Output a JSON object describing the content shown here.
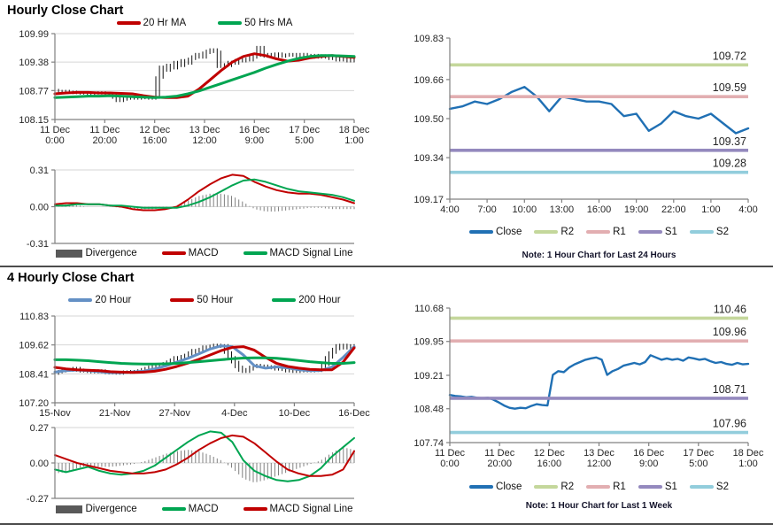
{
  "colors": {
    "dark_red": "#C00000",
    "green": "#00A551",
    "steel_blue": "#6490C5",
    "close_blue": "#2070B4",
    "light_green": "#C4D79B",
    "light_pink": "#E2AEB1",
    "light_purple": "#9489BE",
    "light_cyan": "#92CDDC",
    "candle": "#141414",
    "div_gray": "#808080",
    "div_legend_gray": "#595959",
    "axis": "#808080",
    "grid": "#D6D6D6",
    "tick_text": "#262626"
  },
  "chart_data": [
    {
      "id": "hourly_price",
      "type": "line",
      "title": "Hourly Close Chart",
      "ylim": [
        108.15,
        109.99
      ],
      "y_ticks": [
        "109.99",
        "109.38",
        "108.77",
        "108.15"
      ],
      "x_ticks": [
        [
          "11 Dec",
          "0:00"
        ],
        [
          "11 Dec",
          "20:00"
        ],
        [
          "12 Dec",
          "16:00"
        ],
        [
          "13 Dec",
          "12:00"
        ],
        [
          "16 Dec",
          "9:00"
        ],
        [
          "17 Dec",
          "5:00"
        ],
        [
          "18 Dec",
          "1:00"
        ]
      ],
      "gridlines": true,
      "series": [
        {
          "name": "Close",
          "kind": "candles",
          "color": "candle",
          "legend": false,
          "values": [
            108.78,
            108.75,
            108.74,
            108.76,
            108.73,
            108.74,
            108.72,
            108.73,
            108.71,
            108.72,
            108.7,
            108.72,
            108.71,
            108.73,
            108.72,
            108.7,
            108.71,
            108.62,
            108.55,
            108.58,
            108.6,
            108.61,
            108.62,
            108.6,
            108.61,
            108.62,
            108.61,
            108.6,
            108.62,
            109.05,
            109.28,
            109.2,
            109.32,
            109.25,
            109.38,
            109.3,
            109.42,
            109.35,
            109.45,
            109.5,
            109.55,
            109.48,
            109.58,
            109.62,
            109.65,
            109.6,
            109.28,
            109.33,
            109.3,
            109.38,
            109.35,
            109.42,
            109.4,
            109.45,
            109.42,
            109.48,
            109.52,
            109.7,
            109.55,
            109.5,
            109.55,
            109.52,
            109.56,
            109.5,
            109.54,
            109.52,
            109.55,
            109.53,
            109.5,
            109.55,
            109.52,
            109.5,
            109.53,
            109.48,
            109.5,
            109.52,
            109.48,
            109.45,
            109.5,
            109.42,
            109.46,
            109.44,
            109.4,
            109.45
          ]
        },
        {
          "name": "20 Hr MA",
          "kind": "line",
          "color": "dark_red",
          "width": 3,
          "values": [
            108.7,
            108.72,
            108.73,
            108.73,
            108.72,
            108.72,
            108.71,
            108.7,
            108.66,
            108.63,
            108.62,
            108.62,
            108.65,
            108.8,
            109.0,
            109.2,
            109.38,
            109.5,
            109.56,
            109.52,
            109.45,
            109.4,
            109.42,
            109.47,
            109.5,
            109.52,
            109.5,
            109.48
          ]
        },
        {
          "name": "50 Hrs MA",
          "kind": "line",
          "color": "green",
          "width": 3,
          "values": [
            108.62,
            108.63,
            108.64,
            108.65,
            108.65,
            108.66,
            108.65,
            108.64,
            108.63,
            108.62,
            108.63,
            108.65,
            108.7,
            108.76,
            108.84,
            108.92,
            109.0,
            109.08,
            109.16,
            109.25,
            109.33,
            109.4,
            109.46,
            109.5,
            109.52,
            109.52,
            109.51,
            109.5
          ]
        }
      ]
    },
    {
      "id": "hourly_macd",
      "type": "line",
      "ylim": [
        -0.31,
        0.31
      ],
      "y_ticks": [
        "0.31",
        "0.00",
        "-0.31"
      ],
      "x_ticks": [],
      "gridlines": true,
      "series": [
        {
          "name": "Divergence",
          "kind": "bars",
          "color": "div_gray",
          "values": [
            0.01,
            0.02,
            0.01,
            0.0,
            0.0,
            0.0,
            -0.01,
            -0.02,
            -0.02,
            -0.02,
            -0.01,
            0.01,
            0.05,
            0.09,
            0.11,
            0.11,
            0.09,
            0.04,
            -0.02,
            -0.04,
            -0.04,
            -0.03,
            -0.02,
            -0.01,
            -0.01,
            -0.02,
            -0.02,
            -0.02
          ]
        },
        {
          "name": "MACD",
          "kind": "line",
          "color": "dark_red",
          "width": 2,
          "values": [
            0.02,
            0.03,
            0.03,
            0.02,
            0.02,
            0.01,
            0.0,
            -0.02,
            -0.03,
            -0.03,
            -0.02,
            0.0,
            0.06,
            0.13,
            0.19,
            0.24,
            0.27,
            0.26,
            0.21,
            0.17,
            0.14,
            0.12,
            0.11,
            0.11,
            0.1,
            0.08,
            0.06,
            0.03
          ]
        },
        {
          "name": "MACD Signal Line",
          "kind": "line",
          "color": "green",
          "width": 2,
          "values": [
            0.01,
            0.01,
            0.02,
            0.02,
            0.02,
            0.01,
            0.01,
            0.0,
            -0.01,
            -0.01,
            -0.01,
            -0.01,
            0.01,
            0.04,
            0.08,
            0.13,
            0.18,
            0.22,
            0.23,
            0.21,
            0.18,
            0.15,
            0.13,
            0.12,
            0.11,
            0.1,
            0.08,
            0.05
          ]
        }
      ]
    },
    {
      "id": "hourly_levels",
      "type": "line",
      "ylim": [
        109.17,
        109.83
      ],
      "y_ticks": [
        "109.83",
        "109.66",
        "109.50",
        "109.34",
        "109.17"
      ],
      "x_ticks": [
        "4:00",
        "7:00",
        "10:00",
        "13:00",
        "16:00",
        "19:00",
        "22:00",
        "1:00",
        "4:00"
      ],
      "gridlines": false,
      "levels": [
        {
          "name": "R2",
          "label": "109.72",
          "value": 109.72,
          "color": "light_green"
        },
        {
          "name": "R1",
          "label": "109.59",
          "value": 109.59,
          "color": "light_pink"
        },
        {
          "name": "S1",
          "label": "109.37",
          "value": 109.37,
          "color": "light_purple"
        },
        {
          "name": "S2",
          "label": "109.28",
          "value": 109.28,
          "color": "light_cyan"
        }
      ],
      "series": [
        {
          "name": "Close",
          "kind": "line",
          "color": "close_blue",
          "width": 2.4,
          "values": [
            109.54,
            109.55,
            109.57,
            109.56,
            109.58,
            109.61,
            109.63,
            109.59,
            109.53,
            109.59,
            109.58,
            109.57,
            109.57,
            109.56,
            109.51,
            109.52,
            109.45,
            109.48,
            109.53,
            109.51,
            109.5,
            109.52,
            109.48,
            109.44,
            109.46
          ]
        }
      ],
      "note": "Note: 1 Hour Chart for Last 24 Hours"
    },
    {
      "id": "fourh_price",
      "type": "line",
      "title": "4 Hourly Close Chart",
      "ylim": [
        107.2,
        110.83
      ],
      "y_ticks": [
        "110.83",
        "109.62",
        "108.41",
        "107.20"
      ],
      "x_ticks": [
        "15-Nov",
        "21-Nov",
        "27-Nov",
        "4-Dec",
        "10-Dec",
        "16-Dec"
      ],
      "gridlines": true,
      "series": [
        {
          "name": "Close",
          "kind": "candles",
          "color": "candle",
          "legend": false,
          "values": [
            108.42,
            108.48,
            108.52,
            108.55,
            108.6,
            108.55,
            108.65,
            108.58,
            108.52,
            108.55,
            108.5,
            108.48,
            108.52,
            108.55,
            108.48,
            108.45,
            108.44,
            108.46,
            108.43,
            108.48,
            108.5,
            108.47,
            108.52,
            108.5,
            108.55,
            108.6,
            108.65,
            108.7,
            108.75,
            108.72,
            108.8,
            108.85,
            108.92,
            109.0,
            109.1,
            109.05,
            109.15,
            109.2,
            109.3,
            109.4,
            109.35,
            109.45,
            109.55,
            109.5,
            109.58,
            109.62,
            109.55,
            109.6,
            109.3,
            109.1,
            108.9,
            108.7,
            108.55,
            108.5,
            108.6,
            108.7,
            108.78,
            108.7,
            108.75,
            108.68,
            108.72,
            108.65,
            108.6,
            108.62,
            108.58,
            108.52,
            108.55,
            108.5,
            108.55,
            108.52,
            108.55,
            108.52,
            108.56,
            108.54,
            108.58,
            108.8,
            109.1,
            109.3,
            109.45,
            109.6,
            109.62,
            109.48,
            109.55,
            109.6
          ]
        },
        {
          "name": "20 Hour",
          "kind": "line",
          "color": "steel_blue",
          "width": 3,
          "values": [
            108.48,
            108.54,
            108.57,
            108.54,
            108.5,
            108.46,
            108.46,
            108.49,
            108.52,
            108.62,
            108.74,
            108.9,
            109.06,
            109.25,
            109.45,
            109.58,
            109.55,
            109.2,
            108.75,
            108.65,
            108.7,
            108.66,
            108.58,
            108.54,
            108.55,
            108.7,
            109.1,
            109.55
          ]
        },
        {
          "name": "50 Hour",
          "kind": "line",
          "color": "dark_red",
          "width": 3,
          "values": [
            108.68,
            108.62,
            108.58,
            108.56,
            108.54,
            108.5,
            108.48,
            108.47,
            108.48,
            108.52,
            108.6,
            108.72,
            108.86,
            109.02,
            109.2,
            109.38,
            109.52,
            109.55,
            109.4,
            109.1,
            108.85,
            108.72,
            108.65,
            108.6,
            108.58,
            108.58,
            108.9,
            109.5
          ]
        },
        {
          "name": "200 Hour",
          "kind": "line",
          "color": "green",
          "width": 3,
          "values": [
            109.0,
            109.0,
            108.98,
            108.96,
            108.92,
            108.88,
            108.85,
            108.83,
            108.82,
            108.82,
            108.83,
            108.85,
            108.88,
            108.92,
            108.96,
            109.0,
            109.04,
            109.07,
            109.08,
            109.08,
            109.06,
            109.02,
            108.97,
            108.92,
            108.88,
            108.85,
            108.85,
            108.88
          ]
        }
      ]
    },
    {
      "id": "fourh_macd",
      "type": "line",
      "ylim": [
        -0.27,
        0.27
      ],
      "y_ticks": [
        "0.27",
        "0.00",
        "-0.27"
      ],
      "x_ticks": [],
      "gridlines": true,
      "series": [
        {
          "name": "Divergence",
          "kind": "bars",
          "color": "div_gray",
          "values": [
            -0.08,
            -0.07,
            -0.04,
            -0.02,
            -0.03,
            -0.03,
            -0.02,
            -0.01,
            0.01,
            0.04,
            0.07,
            0.09,
            0.1,
            0.09,
            0.06,
            0.02,
            -0.04,
            -0.12,
            -0.15,
            -0.13,
            -0.1,
            -0.07,
            -0.04,
            -0.01,
            0.02,
            0.08,
            0.12,
            0.1
          ]
        },
        {
          "name": "MACD",
          "kind": "line",
          "color": "green",
          "width": 2,
          "values": [
            -0.05,
            -0.07,
            -0.05,
            -0.03,
            -0.06,
            -0.08,
            -0.09,
            -0.08,
            -0.06,
            -0.02,
            0.04,
            0.1,
            0.16,
            0.21,
            0.24,
            0.23,
            0.16,
            0.02,
            -0.06,
            -0.1,
            -0.13,
            -0.14,
            -0.13,
            -0.1,
            -0.04,
            0.05,
            0.12,
            0.19
          ]
        },
        {
          "name": "MACD Signal Line",
          "kind": "line",
          "color": "dark_red",
          "width": 2,
          "values": [
            0.06,
            0.03,
            0.0,
            -0.02,
            -0.04,
            -0.06,
            -0.07,
            -0.08,
            -0.08,
            -0.07,
            -0.05,
            -0.01,
            0.04,
            0.1,
            0.15,
            0.19,
            0.21,
            0.2,
            0.15,
            0.08,
            0.01,
            -0.05,
            -0.08,
            -0.1,
            -0.1,
            -0.09,
            -0.05,
            0.09
          ]
        }
      ]
    },
    {
      "id": "weekly_levels",
      "type": "line",
      "ylim": [
        107.74,
        110.68
      ],
      "y_ticks": [
        "110.68",
        "109.95",
        "109.21",
        "108.48",
        "107.74"
      ],
      "x_ticks": [
        [
          "11 Dec",
          "0:00"
        ],
        [
          "11 Dec",
          "20:00"
        ],
        [
          "12 Dec",
          "16:00"
        ],
        [
          "13 Dec",
          "12:00"
        ],
        [
          "16 Dec",
          "9:00"
        ],
        [
          "17 Dec",
          "5:00"
        ],
        [
          "18 Dec",
          "1:00"
        ]
      ],
      "gridlines": false,
      "levels": [
        {
          "name": "R2",
          "label": "110.46",
          "value": 110.46,
          "color": "light_green"
        },
        {
          "name": "R1",
          "label": "109.96",
          "value": 109.96,
          "color": "light_pink"
        },
        {
          "name": "S1",
          "label": "108.71",
          "value": 108.71,
          "color": "light_purple"
        },
        {
          "name": "S2",
          "label": "107.96",
          "value": 107.96,
          "color": "light_cyan"
        }
      ],
      "series": [
        {
          "name": "Close",
          "kind": "line",
          "color": "close_blue",
          "width": 2.4,
          "values": [
            108.78,
            108.76,
            108.75,
            108.73,
            108.74,
            108.72,
            108.71,
            108.72,
            108.68,
            108.62,
            108.55,
            108.5,
            108.48,
            108.5,
            108.49,
            108.54,
            108.58,
            108.56,
            108.55,
            109.22,
            109.3,
            109.28,
            109.38,
            109.45,
            109.5,
            109.55,
            109.58,
            109.6,
            109.55,
            109.22,
            109.3,
            109.35,
            109.42,
            109.45,
            109.48,
            109.45,
            109.5,
            109.65,
            109.6,
            109.55,
            109.58,
            109.55,
            109.57,
            109.53,
            109.6,
            109.58,
            109.55,
            109.57,
            109.52,
            109.48,
            109.5,
            109.46,
            109.44,
            109.48,
            109.45,
            109.46
          ]
        }
      ],
      "note": "Note: 1 Hour Chart for Last 1 Week"
    }
  ]
}
